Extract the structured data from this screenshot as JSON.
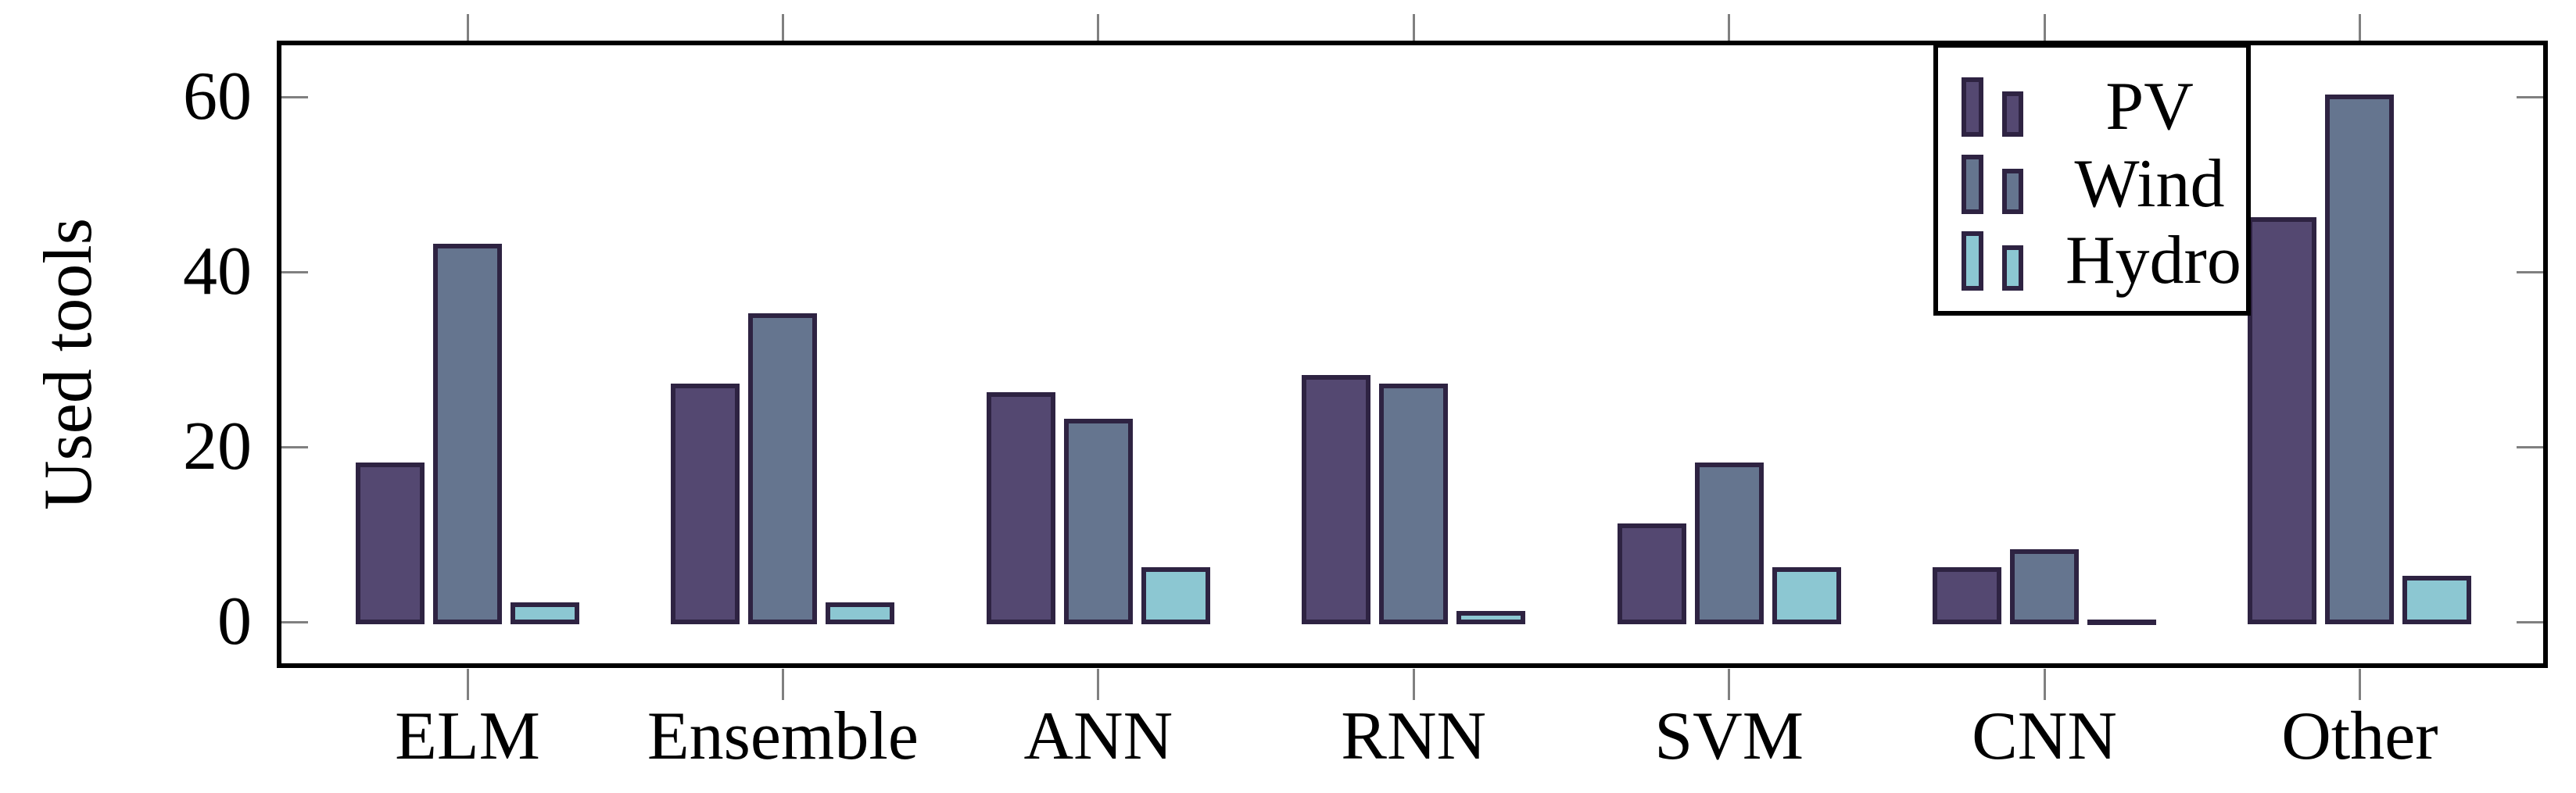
{
  "chart_data": {
    "type": "bar",
    "title": "",
    "ylabel": "Used tools",
    "xlabel": "",
    "categories": [
      "ELM",
      "Ensemble",
      "ANN",
      "RNN",
      "SVM",
      "CNN",
      "Other"
    ],
    "series": [
      {
        "name": "PV",
        "color": "#544871",
        "values": [
          18,
          27,
          26,
          28,
          11,
          6,
          46
        ]
      },
      {
        "name": "Wind",
        "color": "#65758f",
        "values": [
          43,
          35,
          23,
          27,
          18,
          8,
          60
        ]
      },
      {
        "name": "Hydro",
        "color": "#8cc7d2",
        "values": [
          2,
          2,
          6,
          1,
          6,
          0,
          5
        ]
      }
    ],
    "yticks": [
      0,
      20,
      40,
      60
    ],
    "ylim": [
      -5,
      66.2
    ],
    "grid": false,
    "legend_position": "top-right",
    "bar_border_color": "#2e2342",
    "frame_color": "#000000",
    "tick_color": "#808080",
    "text_color": "#000000",
    "background_color": "#ffffff"
  }
}
